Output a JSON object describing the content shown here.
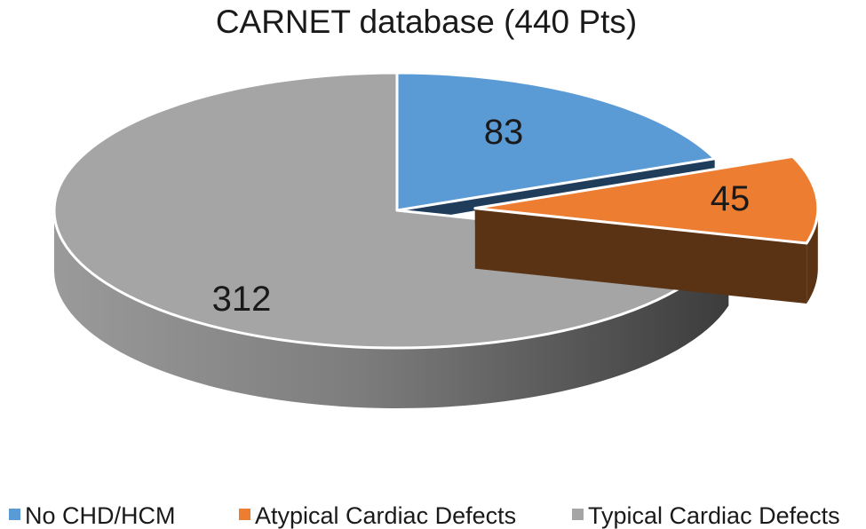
{
  "chart_data": {
    "type": "pie",
    "style": "3d-exploded",
    "title": "CARNET database (440 Pts)",
    "total": 440,
    "categories": [
      "No CHD/HCM",
      "Atypical Cardiac Defects",
      "Typical Cardiac Defects"
    ],
    "values": [
      83,
      45,
      312
    ],
    "data_labels": [
      "83",
      "45",
      "312"
    ],
    "exploded": [
      false,
      true,
      false
    ],
    "colors": [
      "#5b9bd5",
      "#ed7d31",
      "#a5a5a5"
    ],
    "side_colors": [
      "#1f3c5a",
      "#5a3214",
      "#5a5a5a"
    ],
    "legend_position": "bottom"
  }
}
